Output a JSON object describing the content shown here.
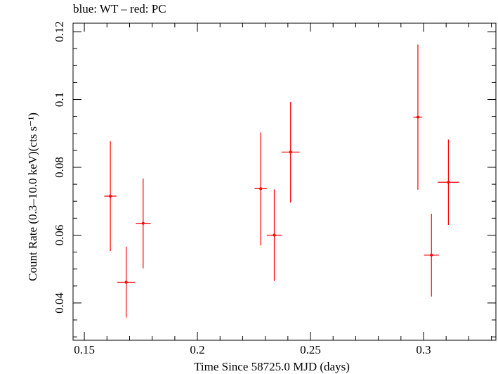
{
  "chart_data": {
    "type": "scatter",
    "title": "blue: WT – red: PC",
    "xlabel": "Time Since 58725.0 MJD (days)",
    "ylabel": "Count Rate (0.3–10.0 keV)(cts s⁻¹)",
    "xlim": [
      0.145,
      0.332
    ],
    "ylim": [
      0.029,
      0.1225
    ],
    "x_ticks": [
      0.15,
      0.2,
      0.25,
      0.3
    ],
    "x_tick_labels": [
      "0.15",
      "0.2",
      "0.25",
      "0.3"
    ],
    "y_ticks": [
      0.04,
      0.06,
      0.08,
      0.1,
      0.12
    ],
    "y_tick_labels": [
      "0.04",
      "0.06",
      "0.08",
      "0.1",
      "0.12"
    ],
    "grid": false,
    "series": [
      {
        "color": "#ff0000",
        "points": [
          {
            "x": 0.1615,
            "xerr": 0.0027,
            "y": 0.0715,
            "ylo": 0.0553,
            "yhi": 0.0877
          },
          {
            "x": 0.1685,
            "xerr": 0.004,
            "y": 0.0461,
            "ylo": 0.0357,
            "yhi": 0.0566
          },
          {
            "x": 0.176,
            "xerr": 0.0033,
            "y": 0.0635,
            "ylo": 0.0502,
            "yhi": 0.0767
          },
          {
            "x": 0.228,
            "xerr": 0.0027,
            "y": 0.0737,
            "ylo": 0.057,
            "yhi": 0.0903
          },
          {
            "x": 0.234,
            "xerr": 0.0033,
            "y": 0.06,
            "ylo": 0.0465,
            "yhi": 0.0735
          },
          {
            "x": 0.2412,
            "xerr": 0.004,
            "y": 0.0845,
            "ylo": 0.0696,
            "yhi": 0.0993
          },
          {
            "x": 0.2975,
            "xerr": 0.002,
            "y": 0.0948,
            "ylo": 0.0734,
            "yhi": 0.1162
          },
          {
            "x": 0.3035,
            "xerr": 0.0033,
            "y": 0.0541,
            "ylo": 0.0419,
            "yhi": 0.0663
          },
          {
            "x": 0.311,
            "xerr": 0.0047,
            "y": 0.0756,
            "ylo": 0.063,
            "yhi": 0.0882
          }
        ]
      }
    ]
  }
}
